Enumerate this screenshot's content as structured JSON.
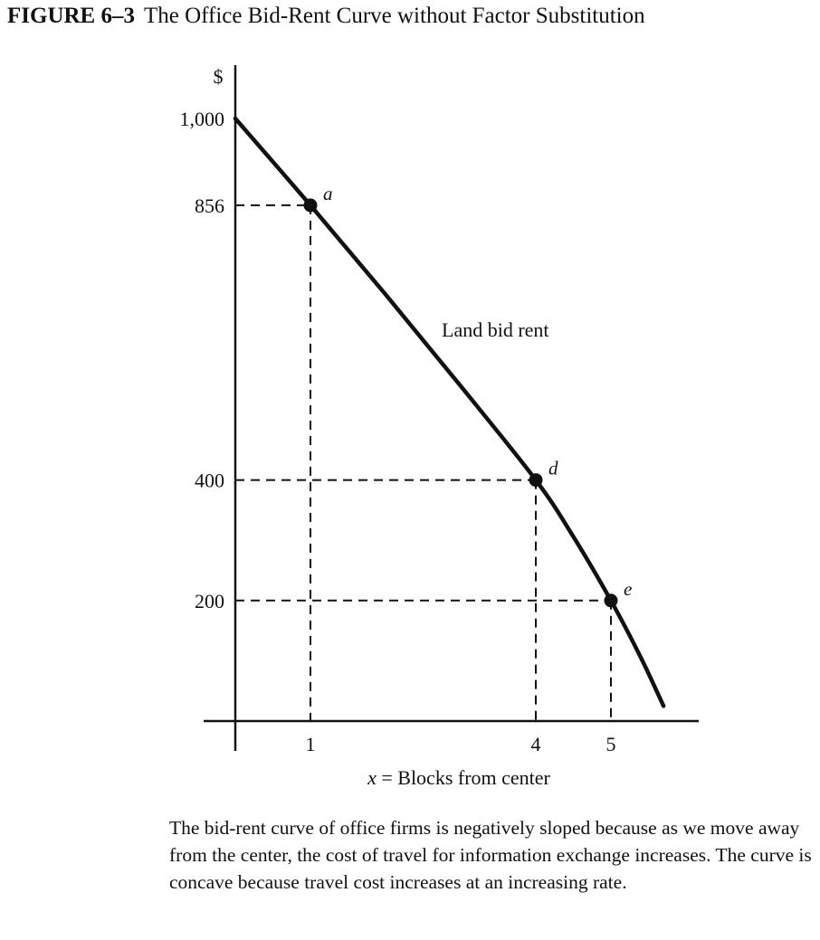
{
  "figure": {
    "number": "FIGURE 6–3",
    "title": "The Office Bid-Rent Curve without Factor Substitution"
  },
  "caption": "The bid-rent curve of office firms is negatively sloped because as we move away from the center, the cost of travel for information exchange increases. The curve is concave because travel cost increases at an increasing rate.",
  "chart_data": {
    "type": "line",
    "title": "The Office Bid-Rent Curve without Factor Substitution",
    "xlabel": "x = Blocks from center",
    "ylabel": "$",
    "xlim": [
      0,
      5.8
    ],
    "ylim": [
      0,
      1000
    ],
    "grid": false,
    "y_ticks": [
      {
        "value": 1000,
        "label": "1,000"
      },
      {
        "value": 856,
        "label": "856"
      },
      {
        "value": 400,
        "label": "400"
      },
      {
        "value": 200,
        "label": "200"
      }
    ],
    "x_ticks": [
      {
        "value": 1,
        "label": "1"
      },
      {
        "value": 4,
        "label": "4"
      },
      {
        "value": 5,
        "label": "5"
      }
    ],
    "series": [
      {
        "name": "Land bid rent",
        "points": [
          {
            "x": 0,
            "y": 1000
          },
          {
            "x": 1,
            "y": 856
          },
          {
            "x": 2,
            "y": 708
          },
          {
            "x": 3,
            "y": 556
          },
          {
            "x": 4,
            "y": 400
          },
          {
            "x": 4.5,
            "y": 306
          },
          {
            "x": 5,
            "y": 200
          },
          {
            "x": 5.4,
            "y": 105
          },
          {
            "x": 5.7,
            "y": 25
          }
        ]
      }
    ],
    "marked_points": [
      {
        "label": "a",
        "x": 1,
        "y": 856
      },
      {
        "label": "d",
        "x": 4,
        "y": 400
      },
      {
        "label": "e",
        "x": 5,
        "y": 200
      }
    ],
    "curve_label": "Land bid rent"
  }
}
